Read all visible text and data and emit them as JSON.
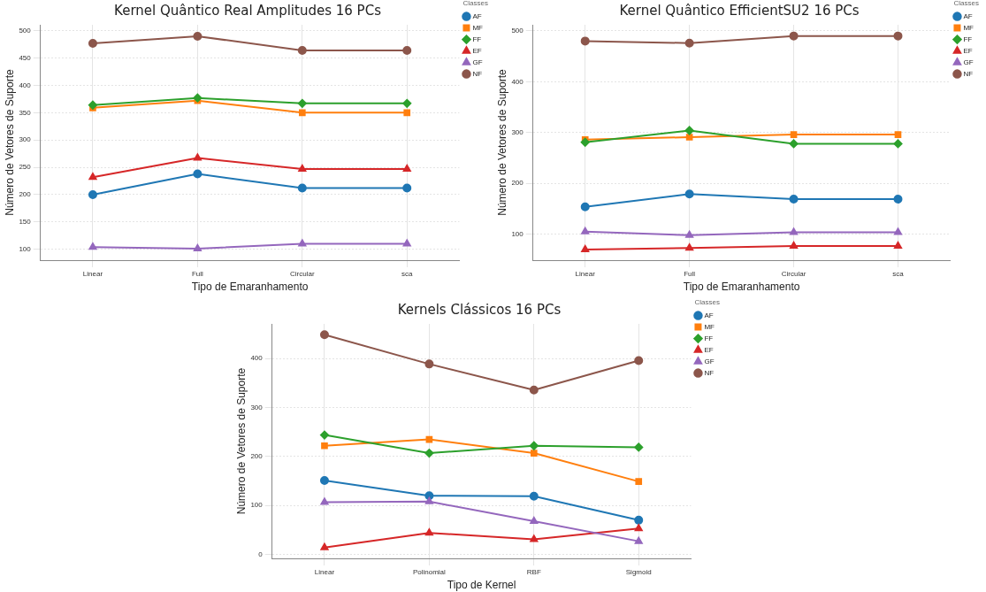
{
  "chart_data": [
    {
      "type": "line",
      "title": "Kernel Quântico Real Amplitudes 16 PCs",
      "xlabel": "Tipo de Emaranhamento",
      "ylabel": "Número de Vetores de Suporte",
      "legend_title": "Classes",
      "legend": "top right",
      "grid": true,
      "categories": [
        "Linear",
        "Full",
        "Circular",
        "sca"
      ],
      "ylim": [
        80,
        511
      ],
      "yticks": [
        100,
        150,
        200,
        250,
        300,
        350,
        400,
        450,
        500
      ],
      "series": [
        {
          "name": "AF",
          "color": "#1f77b4",
          "marker": "circle",
          "values": [
            200,
            238,
            212,
            212
          ]
        },
        {
          "name": "MF",
          "color": "#ff7f0e",
          "marker": "square",
          "values": [
            359,
            372,
            350,
            350
          ]
        },
        {
          "name": "FF",
          "color": "#2ca02c",
          "marker": "diamond",
          "values": [
            364,
            377,
            367,
            367
          ]
        },
        {
          "name": "EF",
          "color": "#d62728",
          "marker": "triangle",
          "values": [
            232,
            267,
            247,
            247
          ]
        },
        {
          "name": "GF",
          "color": "#9467bd",
          "marker": "triangle",
          "values": [
            104,
            101,
            110,
            110
          ]
        },
        {
          "name": "NF",
          "color": "#8c564b",
          "marker": "circle",
          "values": [
            477,
            490,
            464,
            464
          ]
        }
      ]
    },
    {
      "type": "line",
      "title": "Kernel Quântico EfficientSU2 16 PCs",
      "xlabel": "Tipo de Emaranhamento",
      "ylabel": "Número de Vetores de Suporte",
      "legend_title": "Classes",
      "legend": "top right",
      "grid": true,
      "categories": [
        "Linear",
        "Full",
        "Circular",
        "sca"
      ],
      "ylim": [
        49,
        512
      ],
      "yticks": [
        100,
        200,
        300,
        400,
        500
      ],
      "series": [
        {
          "name": "AF",
          "color": "#1f77b4",
          "marker": "circle",
          "values": [
            154,
            179,
            169,
            169
          ]
        },
        {
          "name": "MF",
          "color": "#ff7f0e",
          "marker": "square",
          "values": [
            286,
            291,
            296,
            296
          ]
        },
        {
          "name": "FF",
          "color": "#2ca02c",
          "marker": "diamond",
          "values": [
            281,
            304,
            278,
            278
          ]
        },
        {
          "name": "EF",
          "color": "#d62728",
          "marker": "triangle",
          "values": [
            70,
            73,
            77,
            77
          ]
        },
        {
          "name": "GF",
          "color": "#9467bd",
          "marker": "triangle",
          "values": [
            105,
            98,
            104,
            104
          ]
        },
        {
          "name": "NF",
          "color": "#8c564b",
          "marker": "circle",
          "values": [
            480,
            476,
            490,
            490
          ]
        }
      ]
    },
    {
      "type": "line",
      "title": "Kernels Clássicos 16 PCs",
      "xlabel": "Tipo de Kernel",
      "ylabel": "Número de Vetores de Suporte",
      "legend_title": "Classes",
      "legend": "top right",
      "grid": true,
      "categories": [
        "Linear",
        "Polinomial",
        "RBF",
        "Sigmoid"
      ],
      "ylim": [
        -8,
        471
      ],
      "yticks": [
        0,
        100,
        200,
        300,
        400
      ],
      "series": [
        {
          "name": "AF",
          "color": "#1f77b4",
          "marker": "circle",
          "values": [
            151,
            120,
            119,
            70
          ]
        },
        {
          "name": "MF",
          "color": "#ff7f0e",
          "marker": "square",
          "values": [
            222,
            235,
            207,
            149
          ]
        },
        {
          "name": "FF",
          "color": "#2ca02c",
          "marker": "diamond",
          "values": [
            244,
            207,
            222,
            219
          ]
        },
        {
          "name": "EF",
          "color": "#d62728",
          "marker": "triangle",
          "values": [
            14,
            44,
            31,
            53
          ]
        },
        {
          "name": "GF",
          "color": "#9467bd",
          "marker": "triangle",
          "values": [
            107,
            108,
            68,
            27
          ]
        },
        {
          "name": "NF",
          "color": "#8c564b",
          "marker": "circle",
          "values": [
            449,
            389,
            336,
            396
          ]
        }
      ]
    }
  ]
}
